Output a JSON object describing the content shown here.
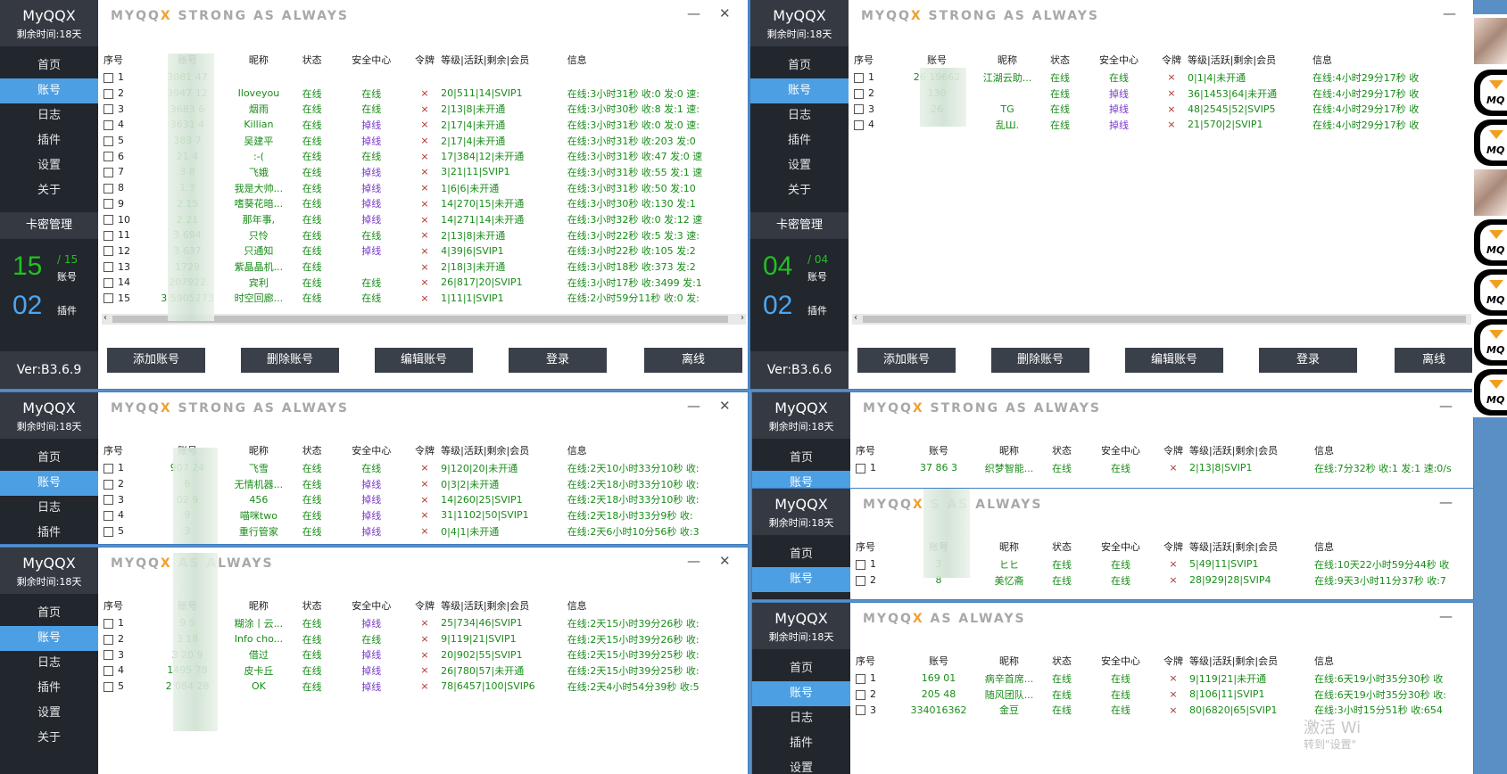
{
  "app_name": "MyQQX",
  "remaining": "剩余时间:18天",
  "title_pre": "MYQQ",
  "title_x": "X",
  "title_post": " STRONG AS ALWAYS",
  "title_b_pre": "MYQQ",
  "title_b_x": "X",
  "title_b_mid": " S",
  "title_b_post": "G AS ALWAYS",
  "title_d_post": " AS ALWAYS",
  "title_f_post": " AS ALWAYS",
  "title_e_post": " STRONG AS ALWAYS",
  "title_g_post": " AS ALWAYS",
  "min_glyph": "—",
  "close_glyph": "✕",
  "nav": {
    "home": "首页",
    "account": "账号",
    "log": "日志",
    "plugin": "插件",
    "settings": "设置",
    "about": "关于"
  },
  "card_mgmt": "卡密管理",
  "stat_account_label": "账号",
  "stat_plugin_label": "插件",
  "win1": {
    "accounts": "15",
    "total": "/ 15",
    "plugins": "02",
    "version": "Ver:B3.6.9"
  },
  "win2": {
    "accounts": "04",
    "total": "/ 04",
    "plugins": "02",
    "version": "Ver:B3.6.6"
  },
  "columns": {
    "seq": "序号",
    "acct": "账号",
    "nick": "昵称",
    "status": "状态",
    "security": "安全中心",
    "token": "令牌",
    "level": "等级|活跃|剩余|会员",
    "info": "信息"
  },
  "buttons": {
    "add": "添加账号",
    "del": "删除账号",
    "edit": "编辑账号",
    "login": "登录",
    "offline": "离线"
  },
  "win1_rows": [
    [
      "1",
      "3081        47",
      "",
      "",
      "",
      "",
      "",
      ""
    ],
    [
      "2",
      "3947        12",
      "Iloveyou",
      "在线",
      "在线",
      "×",
      "20|511|14|SVIP1",
      "在线:3小时31秒 收:0 发:0 速:"
    ],
    [
      "3",
      "3683        6",
      "烟雨",
      "在线",
      "在线",
      "×",
      "2|13|8|未开通",
      "在线:3小时30秒 收:8 发:1 速:"
    ],
    [
      "4",
      "3631        4",
      "Killian",
      "在线",
      "掉线",
      "×",
      "2|17|4|未开通",
      "在线:3小时31秒 收:0 发:0 速:"
    ],
    [
      "5",
      "383         7",
      "吴建平",
      "在线",
      "掉线",
      "×",
      "2|17|4|未开通",
      "在线:3小时31秒 收:203 发:0"
    ],
    [
      "6",
      "21          4",
      ":-(",
      "在线",
      "在线",
      "×",
      "17|384|12|未开通",
      "在线:3小时31秒 收:47 发:0 速"
    ],
    [
      "7",
      "3           8",
      "飞娥",
      "在线",
      "掉线",
      "×",
      "3|21|11|SVIP1",
      "在线:3小时31秒 收:55 发:1 速"
    ],
    [
      "8",
      "1           3",
      "我是大帅...",
      "在线",
      "掉线",
      "×",
      "1|6|6|未开通",
      "在线:3小时31秒 收:50 发:10"
    ],
    [
      "9",
      "2           15",
      "嗜葵花暗...",
      "在线",
      "掉线",
      "×",
      "14|270|15|未开通",
      "在线:3小时30秒 收:130 发:1"
    ],
    [
      "10",
      "2          21",
      "那年事,",
      "在线",
      "掉线",
      "×",
      "14|271|14|未开通",
      "在线:3小时32秒 收:0 发:12 速"
    ],
    [
      "11",
      "3          694",
      "只怜",
      "在线",
      "在线",
      "×",
      "2|13|8|未开通",
      "在线:3小时22秒 收:5 发:3 速:"
    ],
    [
      "12",
      "3          637",
      "只通知",
      "在线",
      "掉线",
      "×",
      "4|39|6|SVIP1",
      "在线:3小时22秒 收:105 发:2"
    ],
    [
      "13",
      "           1729",
      "紫晶晶机...",
      "在线",
      "",
      "×",
      "2|18|3|未开通",
      "在线:3小时18秒 收:373 发:2"
    ],
    [
      "14",
      "          207922",
      "宾利",
      "在线",
      "在线",
      "×",
      "26|817|20|SVIP1",
      "在线:3小时17秒 收:3499 发:1"
    ],
    [
      "15",
      "3         5905273",
      "时空回廊...",
      "在线",
      "在线",
      "×",
      "1|11|1|SVIP1",
      "在线:2小时59分11秒 收:0 发:"
    ]
  ],
  "win2_rows": [
    [
      "1",
      "26    19662",
      "江湖云助...",
      "在线",
      "在线",
      "×",
      "0|1|4|未开通",
      "在线:4小时29分17秒 收"
    ],
    [
      "2",
      "      130",
      "",
      "在线",
      "掉线",
      "×",
      "36|1453|64|未开通",
      "在线:4小时29分17秒 收"
    ],
    [
      "3",
      "      26",
      "TG",
      "在线",
      "掉线",
      "×",
      "48|2545|52|SVIP5",
      "在线:4小时29分17秒 收"
    ],
    [
      "4",
      "",
      "乱Ш.",
      "在线",
      "掉线",
      "×",
      "21|570|2|SVIP1",
      "在线:4小时29分17秒 收"
    ]
  ],
  "win3_rows": [
    [
      "1",
      "907     24",
      "飞雪",
      "在线",
      "在线",
      "×",
      "9|120|20|未开通",
      "在线:2天10小时33分10秒 收:"
    ],
    [
      "2",
      "      6",
      "无情机器...",
      "在线",
      "掉线",
      "×",
      "0|3|2|未开通",
      "在线:2天18小时33分10秒 收:"
    ],
    [
      "3",
      "02    9",
      "456",
      "在线",
      "掉线",
      "×",
      "14|260|25|SVIP1",
      "在线:2天18小时33分10秒 收:"
    ],
    [
      "4",
      "      9",
      "喵咪two",
      "在线",
      "掉线",
      "×",
      "31|1102|50|SVIP1",
      "在线:2天18小时33分9秒 收:"
    ],
    [
      "5",
      "      3",
      "重行管家",
      "在线",
      "掉线",
      "×",
      "0|4|1|未开通",
      "在线:2天6小时10分56秒 收:3"
    ]
  ],
  "win4_rows": [
    [
      "1",
      "     9   5",
      "糊涂丨云...",
      "在线",
      "掉线",
      "×",
      "25|734|46|SVIP1",
      "在线:2天15小时39分26秒 收:"
    ],
    [
      "2",
      "3     18",
      "Info cho...",
      "在线",
      "在线",
      "×",
      "9|119|21|SVIP1",
      "在线:2天15小时39分26秒 收:"
    ],
    [
      "3",
      "3     20   9",
      "借过",
      "在线",
      "掉线",
      "×",
      "20|902|55|SVIP1",
      "在线:2天15小时39分25秒 收:"
    ],
    [
      "4",
      "   1495  78",
      "皮卡丘",
      "在线",
      "掉线",
      "×",
      "26|780|57|未开通",
      "在线:2天15小时39分25秒 收:"
    ],
    [
      "5",
      "2   084  28",
      "OK",
      "在线",
      "掉线",
      "×",
      "78|6457|100|SVIP6",
      "在线:2天4小时54分39秒 收:5"
    ]
  ],
  "win5_rows": [
    [
      "1",
      "37    86   3",
      "织梦智能...",
      "在线",
      "在线",
      "×",
      "2|13|8|SVIP1",
      "在线:7分32秒 收:1 发:1 速:0/s"
    ]
  ],
  "win6_rows": [
    [
      "1",
      "       3",
      "ヒヒ",
      "在线",
      "在线",
      "×",
      "5|49|11|SVIP1",
      "在线:10天22小时59分44秒 收"
    ],
    [
      "2",
      "       8",
      "美忆斋",
      "在线",
      "在线",
      "×",
      "28|929|28|SVIP4",
      "在线:9天3小时11分37秒 收:7"
    ]
  ],
  "win7_rows": [
    [
      "1",
      "169     01",
      "病辛首席...",
      "在线",
      "在线",
      "×",
      "9|119|21|未开通",
      "在线:6天19小时35分30秒 收"
    ],
    [
      "2",
      "205     48",
      "随风团队...",
      "在线",
      "在线",
      "×",
      "8|106|11|SVIP1",
      "在线:6天19小时35分30秒 收:"
    ],
    [
      "3",
      "334016362",
      "金豆",
      "在线",
      "在线",
      "×",
      "80|6820|65|SVIP1",
      "在线:3小时15分51秒 收:654"
    ]
  ],
  "watermark": "激活 Wi",
  "watermark_sub": "转到\"设置\"",
  "avatar_text": "MQ",
  "colors": {
    "accent": "#4d9fe3",
    "sidebar": "#22262d",
    "online": "#1a8c1a",
    "dropped": "#7a3cc8"
  }
}
